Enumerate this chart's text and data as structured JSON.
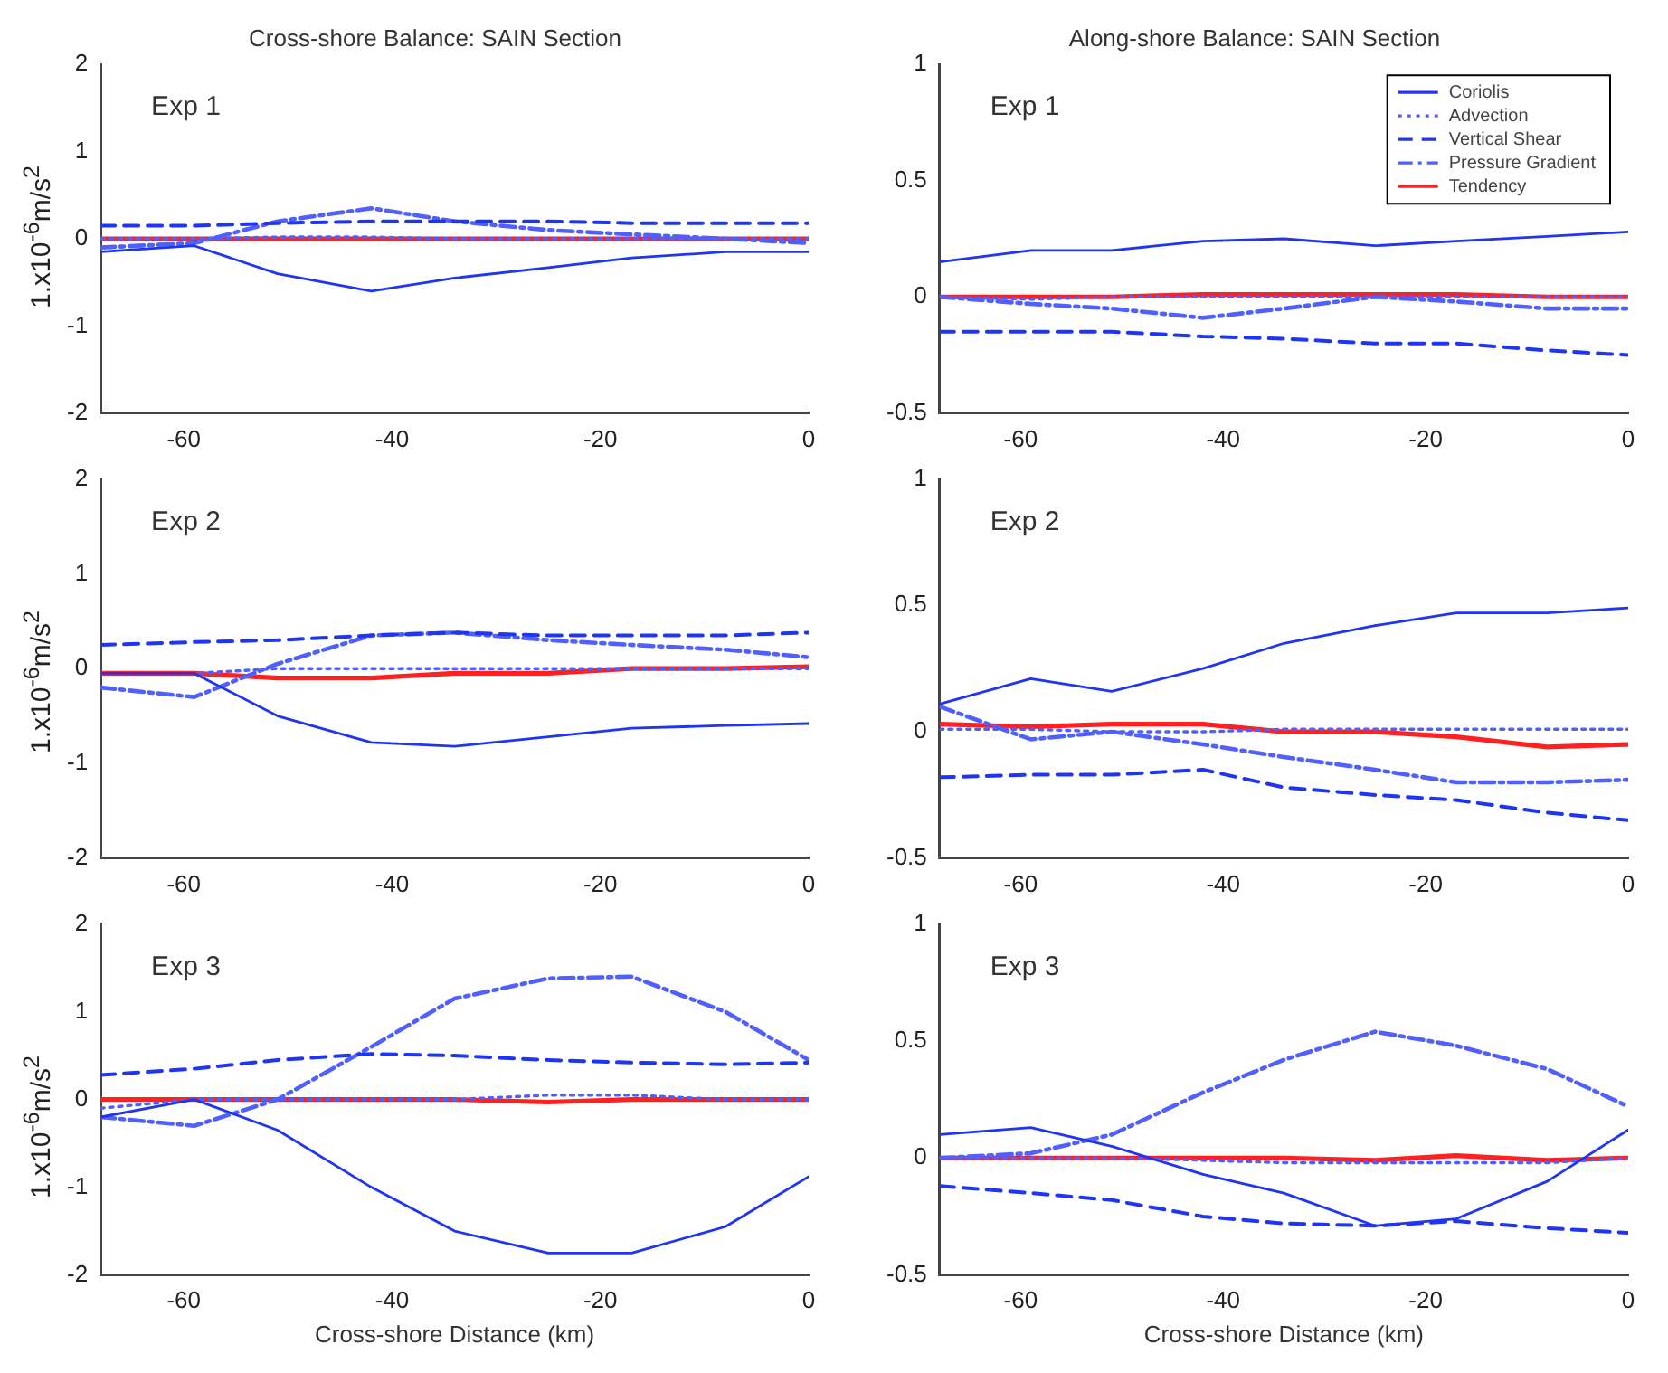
{
  "chart_data": [
    {
      "type": "line",
      "title": "Cross-shore Balance: SAIN Section",
      "ylabel": "1.x10$^{-6}$m/s$^{2}$",
      "annotations": [
        "Exp 1"
      ],
      "x": [
        -68,
        -59,
        -51,
        -42,
        -34,
        -25,
        -17,
        -8,
        0
      ],
      "xlim": [
        -68,
        0
      ],
      "xticks": [
        -60,
        -40,
        -20,
        0
      ],
      "ylim": [
        -2,
        2
      ],
      "yticks": [
        -2,
        -1,
        0,
        1,
        2
      ],
      "series": [
        {
          "color": "#1f35f5",
          "line_style": "solid",
          "values": [
            -0.15,
            -0.08,
            -0.4,
            -0.6,
            -0.45,
            -0.33,
            -0.22,
            -0.15,
            -0.15
          ]
        },
        {
          "color": "#5060ff",
          "line_style": "dotted",
          "values": [
            0,
            0,
            0.02,
            0.02,
            0,
            0,
            0,
            0,
            0
          ]
        },
        {
          "color": "#1f35f5",
          "line_style": "dashed",
          "values": [
            0.15,
            0.15,
            0.18,
            0.2,
            0.2,
            0.2,
            0.18,
            0.18,
            0.18
          ]
        },
        {
          "color": "#5060ff",
          "line_style": "dashdot",
          "values": [
            -0.1,
            -0.05,
            0.2,
            0.35,
            0.2,
            0.1,
            0.05,
            0,
            -0.05
          ]
        },
        {
          "color": "#ff2020",
          "line_style": "solid",
          "values": [
            0,
            0,
            0,
            0,
            0,
            0,
            0,
            0,
            0
          ]
        }
      ]
    },
    {
      "type": "line",
      "title": "Along-shore Balance: SAIN Section",
      "annotations": [
        "Exp 1"
      ],
      "legend": "top right",
      "x": [
        -68,
        -59,
        -51,
        -42,
        -34,
        -25,
        -17,
        -8,
        0
      ],
      "xlim": [
        -68,
        0
      ],
      "xticks": [
        -60,
        -40,
        -20,
        0
      ],
      "ylim": [
        -0.5,
        1
      ],
      "yticks": [
        -0.5,
        0,
        0.5,
        1
      ],
      "series": [
        {
          "name": "Coriolis",
          "color": "#1f35f5",
          "line_style": "solid",
          "values": [
            0.15,
            0.2,
            0.2,
            0.24,
            0.25,
            0.22,
            0.24,
            0.26,
            0.28
          ]
        },
        {
          "name": "Advection",
          "color": "#5060ff",
          "line_style": "dotted",
          "values": [
            0,
            -0.01,
            0,
            0,
            0,
            0,
            0,
            0,
            0
          ]
        },
        {
          "name": "Vertical Shear",
          "color": "#1f35f5",
          "line_style": "dashed",
          "values": [
            -0.15,
            -0.15,
            -0.15,
            -0.17,
            -0.18,
            -0.2,
            -0.2,
            -0.23,
            -0.25
          ]
        },
        {
          "name": "Pressure Gradient",
          "color": "#5060ff",
          "line_style": "dashdot",
          "values": [
            0,
            -0.03,
            -0.05,
            -0.09,
            -0.05,
            0,
            -0.02,
            -0.05,
            -0.05
          ]
        },
        {
          "name": "Tendency",
          "color": "#ff2020",
          "line_style": "solid",
          "values": [
            0,
            0,
            0,
            0.01,
            0.01,
            0.01,
            0.01,
            0,
            0
          ]
        }
      ]
    },
    {
      "type": "line",
      "ylabel": "1.x10$^{-6}$m/s$^{2}$",
      "annotations": [
        "Exp 2"
      ],
      "x": [
        -68,
        -59,
        -51,
        -42,
        -34,
        -25,
        -17,
        -8,
        0
      ],
      "xlim": [
        -68,
        0
      ],
      "xticks": [
        -60,
        -40,
        -20,
        0
      ],
      "ylim": [
        -2,
        2
      ],
      "yticks": [
        -2,
        -1,
        0,
        1,
        2
      ],
      "series": [
        {
          "color": "#1f35f5",
          "line_style": "solid",
          "values": [
            -0.05,
            -0.05,
            -0.5,
            -0.78,
            -0.82,
            -0.72,
            -0.63,
            -0.6,
            -0.58
          ]
        },
        {
          "color": "#5060ff",
          "line_style": "dotted",
          "values": [
            -0.05,
            -0.05,
            0,
            0,
            0,
            0,
            0,
            0,
            0
          ]
        },
        {
          "color": "#1f35f5",
          "line_style": "dashed",
          "values": [
            0.25,
            0.28,
            0.3,
            0.35,
            0.38,
            0.35,
            0.35,
            0.35,
            0.38
          ]
        },
        {
          "color": "#5060ff",
          "line_style": "dashdot",
          "values": [
            -0.2,
            -0.3,
            0.05,
            0.35,
            0.38,
            0.3,
            0.25,
            0.2,
            0.12
          ]
        },
        {
          "color": "#ff2020",
          "line_style": "solid",
          "values": [
            -0.05,
            -0.05,
            -0.1,
            -0.1,
            -0.05,
            -0.05,
            0,
            0,
            0.02
          ]
        }
      ]
    },
    {
      "type": "line",
      "annotations": [
        "Exp 2"
      ],
      "x": [
        -68,
        -59,
        -51,
        -42,
        -34,
        -25,
        -17,
        -8,
        0
      ],
      "xlim": [
        -68,
        0
      ],
      "xticks": [
        -60,
        -40,
        -20,
        0
      ],
      "ylim": [
        -0.5,
        1
      ],
      "yticks": [
        -0.5,
        0,
        0.5,
        1
      ],
      "series": [
        {
          "color": "#1f35f5",
          "line_style": "solid",
          "values": [
            0.11,
            0.21,
            0.16,
            0.25,
            0.35,
            0.42,
            0.47,
            0.47,
            0.49
          ]
        },
        {
          "color": "#5060ff",
          "line_style": "dotted",
          "values": [
            0.01,
            0.01,
            0,
            0,
            0.01,
            0.01,
            0.01,
            0.01,
            0.01
          ]
        },
        {
          "color": "#1f35f5",
          "line_style": "dashed",
          "values": [
            -0.18,
            -0.17,
            -0.17,
            -0.15,
            -0.22,
            -0.25,
            -0.27,
            -0.32,
            -0.35
          ]
        },
        {
          "color": "#5060ff",
          "line_style": "dashdot",
          "values": [
            0.1,
            -0.03,
            0,
            -0.05,
            -0.1,
            -0.15,
            -0.2,
            -0.2,
            -0.19
          ]
        },
        {
          "color": "#ff2020",
          "line_style": "solid",
          "values": [
            0.03,
            0.02,
            0.03,
            0.03,
            0,
            0,
            -0.02,
            -0.06,
            -0.05
          ]
        }
      ]
    },
    {
      "type": "line",
      "ylabel": "1.x10$^{-6}$m/s$^{2}$",
      "xlabel": "Cross-shore Distance (km)",
      "annotations": [
        "Exp 3"
      ],
      "x": [
        -68,
        -59,
        -51,
        -42,
        -34,
        -25,
        -17,
        -8,
        0
      ],
      "xlim": [
        -68,
        0
      ],
      "xticks": [
        -60,
        -40,
        -20,
        0
      ],
      "ylim": [
        -2,
        2
      ],
      "yticks": [
        -2,
        -1,
        0,
        1,
        2
      ],
      "series": [
        {
          "color": "#1f35f5",
          "line_style": "solid",
          "values": [
            -0.2,
            0,
            -0.35,
            -1,
            -1.5,
            -1.75,
            -1.75,
            -1.45,
            -0.88
          ]
        },
        {
          "color": "#5060ff",
          "line_style": "dotted",
          "values": [
            -0.1,
            0,
            0,
            0,
            0,
            0.05,
            0.05,
            0,
            0
          ]
        },
        {
          "color": "#1f35f5",
          "line_style": "dashed",
          "values": [
            0.28,
            0.35,
            0.45,
            0.52,
            0.5,
            0.45,
            0.42,
            0.4,
            0.42
          ]
        },
        {
          "color": "#5060ff",
          "line_style": "dashdot",
          "values": [
            -0.2,
            -0.3,
            0,
            0.6,
            1.15,
            1.38,
            1.4,
            1,
            0.45
          ]
        },
        {
          "color": "#ff2020",
          "line_style": "solid",
          "values": [
            0,
            0,
            0,
            0,
            0,
            -0.03,
            0,
            0,
            0
          ]
        }
      ]
    },
    {
      "type": "line",
      "xlabel": "Cross-shore Distance (km)",
      "annotations": [
        "Exp 3"
      ],
      "x": [
        -68,
        -59,
        -51,
        -42,
        -34,
        -25,
        -17,
        -8,
        0
      ],
      "xlim": [
        -68,
        0
      ],
      "xticks": [
        -60,
        -40,
        -20,
        0
      ],
      "ylim": [
        -0.5,
        1
      ],
      "yticks": [
        -0.5,
        0,
        0.5,
        1
      ],
      "series": [
        {
          "color": "#1f35f5",
          "line_style": "solid",
          "values": [
            0.1,
            0.13,
            0.05,
            -0.07,
            -0.15,
            -0.29,
            -0.26,
            -0.1,
            0.12
          ]
        },
        {
          "color": "#5060ff",
          "line_style": "dotted",
          "values": [
            0,
            0,
            0,
            -0.01,
            -0.02,
            -0.02,
            -0.02,
            -0.02,
            0
          ]
        },
        {
          "color": "#1f35f5",
          "line_style": "dashed",
          "values": [
            -0.12,
            -0.15,
            -0.18,
            -0.25,
            -0.28,
            -0.29,
            -0.27,
            -0.3,
            -0.32
          ]
        },
        {
          "color": "#5060ff",
          "line_style": "dashdot",
          "values": [
            0,
            0.02,
            0.1,
            0.28,
            0.42,
            0.54,
            0.48,
            0.38,
            0.22
          ]
        },
        {
          "color": "#ff2020",
          "line_style": "solid",
          "values": [
            0,
            0,
            0,
            0,
            0,
            -0.01,
            0.01,
            -0.01,
            0
          ]
        }
      ]
    }
  ]
}
